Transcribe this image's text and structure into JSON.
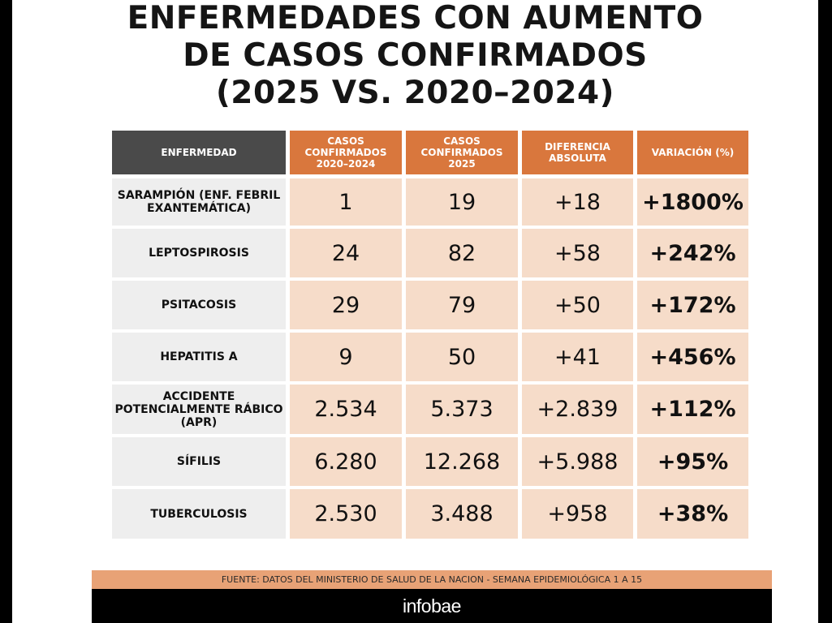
{
  "title": {
    "line1": "ENFERMEDADES CON AUMENTO",
    "line2": "DE CASOS CONFIRMADOS",
    "line3": "(2025 VS. 2020–2024)"
  },
  "table": {
    "headers": [
      "ENFERMEDAD",
      "CASOS CONFIRMADOS 2020–2024",
      "CASOS CONFIRMADOS 2025",
      "DIFERENCIA ABSOLUTA",
      "VARIACIÓN (%)"
    ],
    "rows": [
      {
        "name": "SARAMPIÓN (ENF. FEBRIL EXANTEMÁTICA)",
        "cases_2020_2024": "1",
        "cases_2025": "19",
        "diff": "+18",
        "variation": "+1800%"
      },
      {
        "name": "LEPTOSPIROSIS",
        "cases_2020_2024": "24",
        "cases_2025": "82",
        "diff": "+58",
        "variation": "+242%"
      },
      {
        "name": "PSITACOSIS",
        "cases_2020_2024": "29",
        "cases_2025": "79",
        "diff": "+50",
        "variation": "+172%"
      },
      {
        "name": "HEPATITIS A",
        "cases_2020_2024": "9",
        "cases_2025": "50",
        "diff": "+41",
        "variation": "+456%"
      },
      {
        "name": "ACCIDENTE POTENCIALMENTE RÁBICO (APR)",
        "cases_2020_2024": "2.534",
        "cases_2025": "5.373",
        "diff": "+2.839",
        "variation": "+112%"
      },
      {
        "name": "SÍFILIS",
        "cases_2020_2024": "6.280",
        "cases_2025": "12.268",
        "diff": "+5.988",
        "variation": "+95%"
      },
      {
        "name": "TUBERCULOSIS",
        "cases_2020_2024": "2.530",
        "cases_2025": "3.488",
        "diff": "+958",
        "variation": "+38%"
      }
    ]
  },
  "source": "FUENTE: DATOS DEL MINISTERIO DE SALUD DE LA NACION - SEMANA EPIDEMIOLÓGICA  1 A 15",
  "footer": {
    "logo": "infobae"
  },
  "colors": {
    "header_orange": "#d9773d",
    "header_dark": "#4a4a4a",
    "cell_peach": "#f6dcc9",
    "cell_gray": "#eeeeee"
  }
}
